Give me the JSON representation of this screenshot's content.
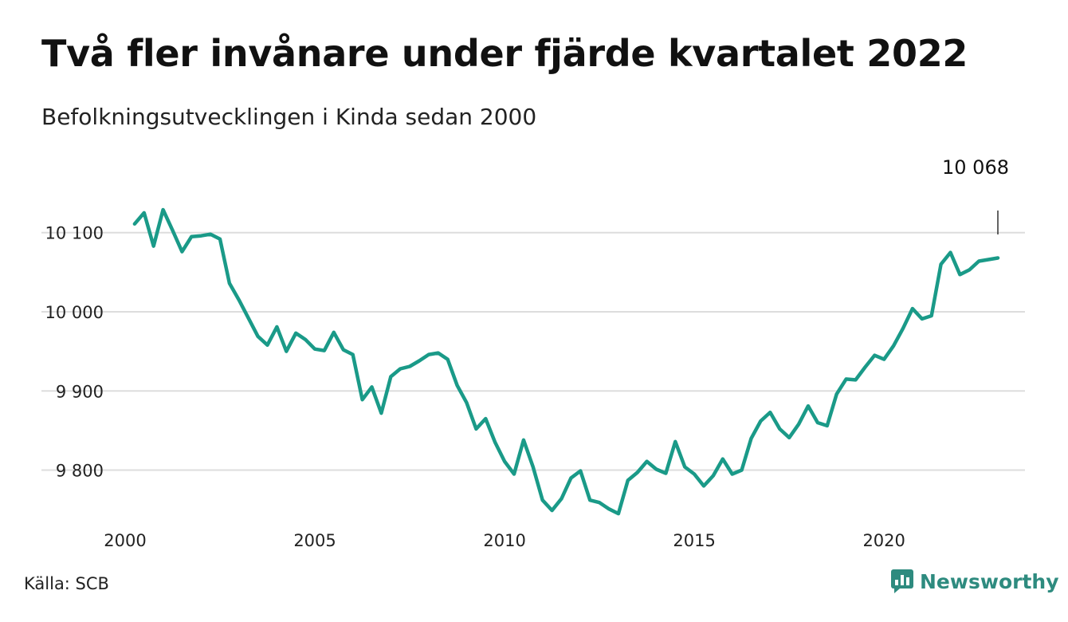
{
  "header": {
    "title": "Två fler invånare under fjärde kvartalet 2022",
    "subtitle": "Befolkningsutvecklingen i Kinda sedan 2000"
  },
  "footer": {
    "source": "Källa: SCB",
    "brand": "Newsworthy",
    "brand_icon": "newsworthy-logo-icon"
  },
  "colors": {
    "line": "#1a9a88",
    "grid": "#dddddd",
    "brand": "#2e8b7f"
  },
  "chart_data": {
    "type": "line",
    "title": "Två fler invånare under fjärde kvartalet 2022",
    "subtitle": "Befolkningsutvecklingen i Kinda sedan 2000",
    "xlabel": "",
    "ylabel": "",
    "xlim": [
      2000,
      2023
    ],
    "ylim": [
      9730,
      10135
    ],
    "x_ticks": [
      2000,
      2005,
      2010,
      2015,
      2020
    ],
    "x_tick_labels": [
      "2000",
      "2005",
      "2010",
      "2015",
      "2020"
    ],
    "y_ticks": [
      9800,
      9900,
      10000,
      10100
    ],
    "y_tick_labels": [
      "9 800",
      "9 900",
      "10 000",
      "10 100"
    ],
    "grid": true,
    "end_label": "10 068",
    "series": [
      {
        "x": [
          2000.25,
          2000.5,
          2000.75,
          2001.0,
          2001.25,
          2001.5,
          2001.75,
          2002.0,
          2002.25,
          2002.5,
          2002.75,
          2003.0,
          2003.25,
          2003.5,
          2003.75,
          2004.0,
          2004.25,
          2004.5,
          2004.75,
          2005.0,
          2005.25,
          2005.5,
          2005.75,
          2006.0,
          2006.25,
          2006.5,
          2006.75,
          2007.0,
          2007.25,
          2007.5,
          2007.75,
          2008.0,
          2008.25,
          2008.5,
          2008.75,
          2009.0,
          2009.25,
          2009.5,
          2009.75,
          2010.0,
          2010.25,
          2010.5,
          2010.75,
          2011.0,
          2011.25,
          2011.5,
          2011.75,
          2012.0,
          2012.25,
          2012.5,
          2012.75,
          2013.0,
          2013.25,
          2013.5,
          2013.75,
          2014.0,
          2014.25,
          2014.5,
          2014.75,
          2015.0,
          2015.25,
          2015.5,
          2015.75,
          2016.0,
          2016.25,
          2016.5,
          2016.75,
          2017.0,
          2017.25,
          2017.5,
          2017.75,
          2018.0,
          2018.25,
          2018.5,
          2018.75,
          2019.0,
          2019.25,
          2019.5,
          2019.75,
          2020.0,
          2020.25,
          2020.5,
          2020.75,
          2021.0,
          2021.25,
          2021.5,
          2021.75,
          2022.0,
          2022.25,
          2022.5,
          2022.75,
          2023.0
        ],
        "values": [
          10111,
          10125,
          10083,
          10129,
          10103,
          10076,
          10095,
          10096,
          10098,
          10092,
          10036,
          10015,
          9992,
          9969,
          9958,
          9981,
          9950,
          9973,
          9965,
          9953,
          9951,
          9974,
          9952,
          9946,
          9889,
          9905,
          9872,
          9918,
          9928,
          9931,
          9938,
          9946,
          9948,
          9940,
          9907,
          9885,
          9852,
          9865,
          9835,
          9811,
          9795,
          9838,
          9804,
          9762,
          9749,
          9764,
          9790,
          9799,
          9762,
          9759,
          9751,
          9745,
          9787,
          9797,
          9811,
          9801,
          9796,
          9836,
          9804,
          9795,
          9780,
          9793,
          9814,
          9795,
          9800,
          9840,
          9862,
          9873,
          9852,
          9841,
          9858,
          9881,
          9860,
          9856,
          9896,
          9915,
          9914,
          9930,
          9945,
          9940,
          9957,
          9979,
          10004,
          9991,
          9995,
          10060,
          10075,
          10047,
          10053,
          10064,
          10066,
          10068
        ]
      }
    ]
  }
}
